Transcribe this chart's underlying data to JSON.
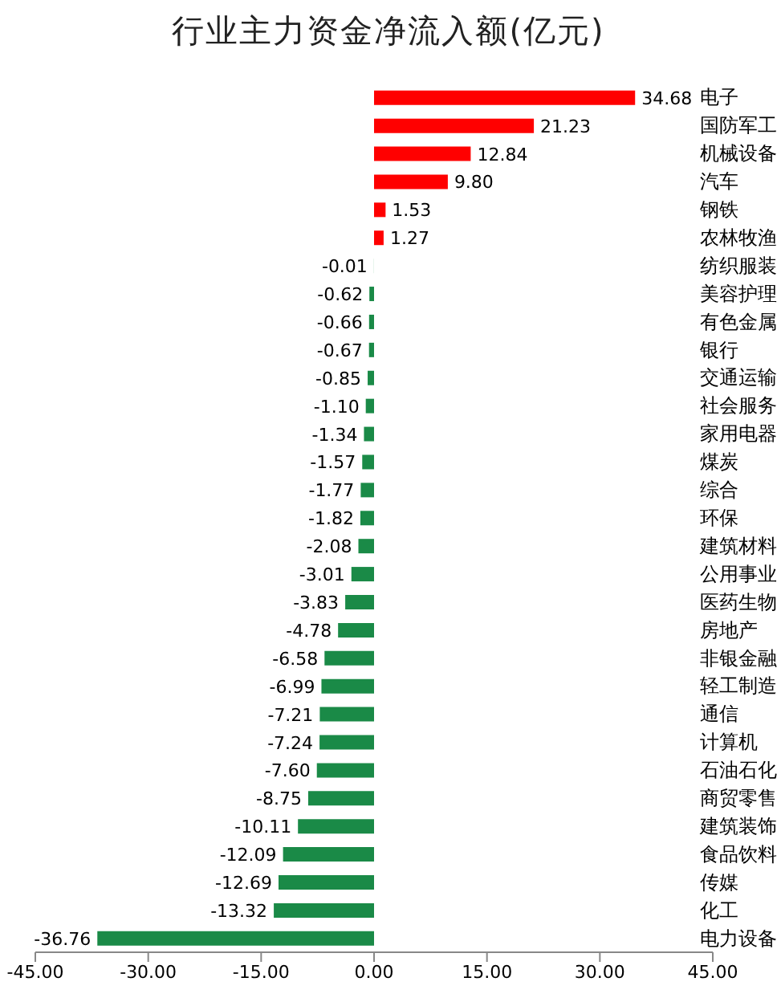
{
  "chart_data": {
    "type": "bar",
    "orientation": "horizontal",
    "title": "行业主力资金净流入额(亿元)",
    "categories": [
      "电子",
      "国防军工",
      "机械设备",
      "汽车",
      "钢铁",
      "农林牧渔",
      "纺织服装",
      "美容护理",
      "有色金属",
      "银行",
      "交通运输",
      "社会服务",
      "家用电器",
      "煤炭",
      "综合",
      "环保",
      "建筑材料",
      "公用事业",
      "医药生物",
      "房地产",
      "非银金融",
      "轻工制造",
      "通信",
      "计算机",
      "石油石化",
      "商贸零售",
      "建筑装饰",
      "食品饮料",
      "传媒",
      "化工",
      "电力设备"
    ],
    "values": [
      34.68,
      21.23,
      12.84,
      9.8,
      1.53,
      1.27,
      -0.01,
      -0.62,
      -0.66,
      -0.67,
      -0.85,
      -1.1,
      -1.34,
      -1.57,
      -1.77,
      -1.82,
      -2.08,
      -3.01,
      -3.83,
      -4.78,
      -6.58,
      -6.99,
      -7.21,
      -7.24,
      -7.6,
      -8.75,
      -10.11,
      -12.09,
      -12.69,
      -13.32,
      -36.76
    ],
    "value_labels": [
      "34.68",
      "21.23",
      "12.84",
      "9.80",
      "1.53",
      "1.27",
      "-0.01",
      "-0.62",
      "-0.66",
      "-0.67",
      "-0.85",
      "-1.10",
      "-1.34",
      "-1.57",
      "-1.77",
      "-1.82",
      "-2.08",
      "-3.01",
      "-3.83",
      "-4.78",
      "-6.58",
      "-6.99",
      "-7.21",
      "-7.24",
      "-7.60",
      "-8.75",
      "-10.11",
      "-12.09",
      "-12.69",
      "-13.32",
      "-36.76"
    ],
    "colors": [
      "#ff0000",
      "#ff0000",
      "#ff0000",
      "#ff0000",
      "#ff0000",
      "#ff0000",
      "#1a8a47",
      "#1a8a47",
      "#1a8a47",
      "#1a8a47",
      "#1a8a47",
      "#1a8a47",
      "#1a8a47",
      "#1a8a47",
      "#1a8a47",
      "#1a8a47",
      "#1a8a47",
      "#1a8a47",
      "#1a8a47",
      "#1a8a47",
      "#1a8a47",
      "#1a8a47",
      "#1a8a47",
      "#1a8a47",
      "#1a8a47",
      "#1a8a47",
      "#1a8a47",
      "#1a8a47",
      "#1a8a47",
      "#1a8a47",
      "#1a8a47"
    ],
    "xlim": [
      -45,
      45
    ],
    "xticks": [
      {
        "value": -45,
        "label": "-45.00"
      },
      {
        "value": -30,
        "label": "-30.00"
      },
      {
        "value": -15,
        "label": "-15.00"
      },
      {
        "value": 0,
        "label": "0.00"
      },
      {
        "value": 15,
        "label": "15.00"
      },
      {
        "value": 30,
        "label": "30.00"
      },
      {
        "value": 45,
        "label": "45.00"
      }
    ],
    "grid": false,
    "legend": false
  }
}
